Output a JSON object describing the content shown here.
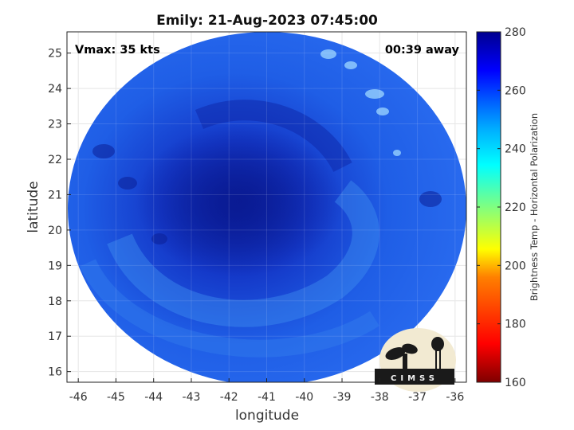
{
  "title": "Emily: 21-Aug-2023 07:45:00",
  "vmax_label": "Vmax: 35 kts",
  "time_offset_label": "00:39 away",
  "x_axis": {
    "label": "longitude",
    "ticks": [
      "-46",
      "-45",
      "-44",
      "-43",
      "-42",
      "-41",
      "-40",
      "-39",
      "-38",
      "-37",
      "-36"
    ]
  },
  "y_axis": {
    "label": "latitude",
    "ticks": [
      "16",
      "17",
      "18",
      "19",
      "20",
      "21",
      "22",
      "23",
      "24",
      "25"
    ]
  },
  "colorbar": {
    "label": "Brightness Temp - Horizontal Polarization",
    "ticks": [
      "160",
      "180",
      "200",
      "220",
      "240",
      "260",
      "280"
    ],
    "range": [
      160,
      280
    ],
    "colormap": [
      "#7f0000",
      "#ff0000",
      "#ff8000",
      "#ffff00",
      "#80ff80",
      "#00ffff",
      "#0080ff",
      "#0000ff",
      "#00008f"
    ]
  },
  "logo": {
    "text": "CIMSS"
  },
  "colors": {
    "swath_outer": "#1f5fe8",
    "swath_core": "#0a22a8",
    "swath_band": "#3f8ff0"
  }
}
